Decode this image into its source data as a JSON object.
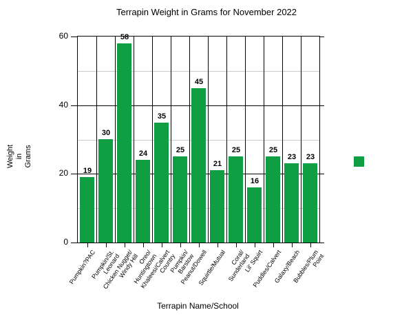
{
  "chart_data": {
    "type": "bar",
    "title": "Terrapin Weight in Grams for November 2022",
    "xlabel": "Terrapin Name/School",
    "ylabel": "Weight\nin\nGrams",
    "categories": [
      "Pumpkin?PAC",
      "Pumpkin/St.\nLeonard",
      "Chicken Nugget/\nWindy Hill",
      "Oreo/\nHuntingtown",
      "Khaleesi/Calvert\nCountry",
      "Pumpkin/\nBarstow",
      "Peanut/Dowell",
      "Squirtle/Mutual",
      "Coral/\nSunderland",
      "Lil' Squirt",
      "Puddles/Calvert",
      "Galaxy/Beach",
      "Bubbles/Plum\nPoint"
    ],
    "values": [
      19,
      30,
      58,
      24,
      35,
      25,
      45,
      21,
      25,
      16,
      25,
      23,
      23
    ],
    "ylim": [
      0,
      60
    ],
    "yticks": [
      0,
      20,
      40,
      60
    ],
    "minor_gridlines": [
      10,
      30,
      50
    ],
    "value_labels_shown": true,
    "bar_color": "#0f9e43",
    "grid_minor_color": "#c9c9c9",
    "grid_major_color": "#000000",
    "legend": {
      "label": "",
      "swatch_color": "#0f9e43",
      "position": "right"
    }
  }
}
